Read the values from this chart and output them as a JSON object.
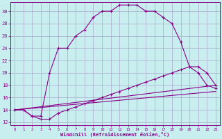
{
  "background_color": "#c8eef0",
  "grid_color": "#aaaacc",
  "line_color": "#880088",
  "xlim": [
    -0.5,
    23.5
  ],
  "ylim": [
    11.5,
    31.5
  ],
  "xtick_labels": [
    "0",
    "1",
    "2",
    "3",
    "4",
    "5",
    "6",
    "7",
    "8",
    "9",
    "10",
    "11",
    "12",
    "13",
    "14",
    "15",
    "16",
    "17",
    "18",
    "19",
    "20",
    "21",
    "22",
    "23"
  ],
  "xtick_vals": [
    0,
    1,
    2,
    3,
    4,
    5,
    6,
    7,
    8,
    9,
    10,
    11,
    12,
    13,
    14,
    15,
    16,
    17,
    18,
    19,
    20,
    21,
    22,
    23
  ],
  "ytick_vals": [
    12,
    14,
    16,
    18,
    20,
    22,
    24,
    26,
    28,
    30
  ],
  "xlabel": "Windchill (Refroidissement éolien,°C)",
  "curve1": {
    "x": [
      0,
      1,
      2,
      3,
      4,
      5,
      6,
      7,
      8,
      9,
      10,
      11,
      12,
      13,
      14,
      15,
      16,
      17,
      18,
      19,
      20,
      21,
      22,
      23
    ],
    "y": [
      14,
      14,
      13,
      13,
      20,
      24,
      24,
      26,
      27,
      29,
      30,
      30,
      31,
      31,
      31,
      30,
      30,
      29,
      28,
      25,
      21,
      20,
      18,
      17.5
    ]
  },
  "curve2": {
    "x": [
      0,
      1,
      2,
      3,
      4,
      5,
      6,
      7,
      8,
      9,
      10,
      11,
      12,
      13,
      14,
      15,
      16,
      17,
      18,
      19,
      20,
      21,
      22,
      23
    ],
    "y": [
      14,
      14,
      13,
      12.5,
      12.5,
      13.5,
      14,
      14.5,
      15,
      15.5,
      16,
      16.5,
      17,
      17.5,
      18,
      18.5,
      19,
      19.5,
      20,
      20.5,
      21,
      21,
      20,
      18
    ]
  },
  "curve3": {
    "x": [
      0,
      23
    ],
    "y": [
      14,
      18
    ]
  },
  "curve4": {
    "x": [
      0,
      23
    ],
    "y": [
      14,
      17
    ]
  }
}
